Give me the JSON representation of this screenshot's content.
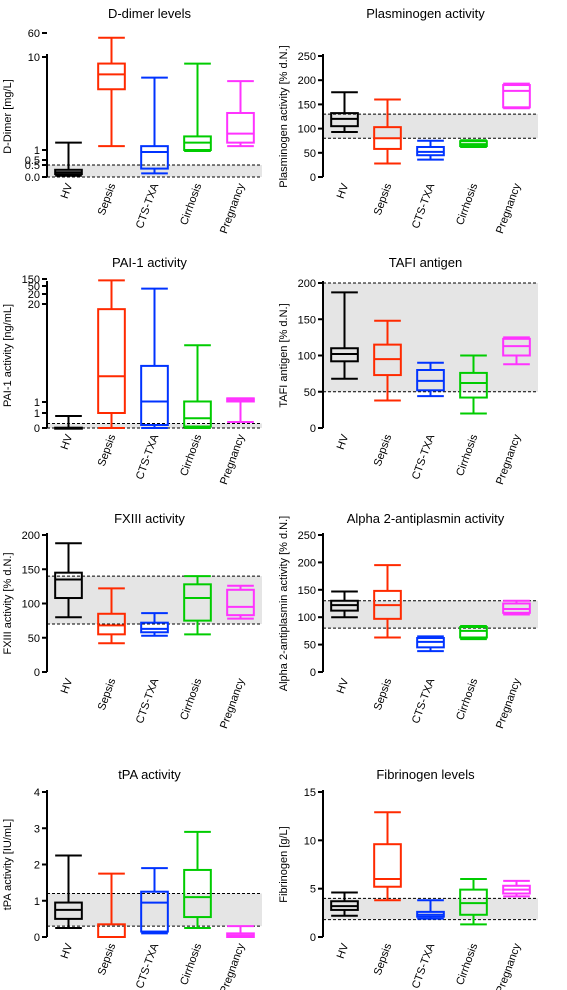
{
  "chart_data": [
    {
      "type": "boxplot",
      "title": "D-dimer levels",
      "ylabel": "D-Dimer [mg/L]",
      "categories": [
        "HV",
        "Sepsis",
        "CTS-TXA",
        "Cirrhosis",
        "Pregnancy"
      ],
      "colors": [
        "#000000",
        "#ff2a00",
        "#0033ff",
        "#00cc00",
        "#ff33ff"
      ],
      "axis_breaks": true,
      "tick_labels": [
        "0.0",
        "0.5",
        "0.5",
        "1",
        "10",
        "60"
      ],
      "reference_range": [
        0,
        0.5
      ],
      "series": [
        {
          "name": "HV",
          "min": 0.05,
          "q1": 0.12,
          "median": 0.2,
          "q3": 0.3,
          "max": 1.2
        },
        {
          "name": "Sepsis",
          "min": 1.1,
          "q1": 4.5,
          "median": 6.5,
          "q3": 8.5,
          "max": 50
        },
        {
          "name": "CTS-TXA",
          "min": 0.15,
          "q1": 0.35,
          "median": 0.9,
          "q3": 1.1,
          "max": 6.0
        },
        {
          "name": "Cirrhosis",
          "min": 0.95,
          "q1": 1.0,
          "median": 1.2,
          "q3": 1.4,
          "max": 8.5
        },
        {
          "name": "Pregnancy",
          "min": 1.1,
          "q1": 1.2,
          "median": 1.5,
          "q3": 2.5,
          "max": 5.5
        }
      ]
    },
    {
      "type": "boxplot",
      "title": "Plasminogen activity",
      "ylabel": "Plasminogen activity [% d.N.]",
      "categories": [
        "HV",
        "Sepsis",
        "CTS-TXA",
        "Cirrhosis",
        "Pregnancy"
      ],
      "colors": [
        "#000000",
        "#ff2a00",
        "#0033ff",
        "#00cc00",
        "#ff33ff"
      ],
      "ylim": [
        0,
        250
      ],
      "yticks": [
        0,
        50,
        100,
        150,
        200,
        250
      ],
      "reference_range": [
        80,
        130
      ],
      "series": [
        {
          "name": "HV",
          "min": 93,
          "q1": 105,
          "median": 120,
          "q3": 132,
          "max": 175
        },
        {
          "name": "Sepsis",
          "min": 28,
          "q1": 58,
          "median": 80,
          "q3": 103,
          "max": 160
        },
        {
          "name": "CTS-TXA",
          "min": 36,
          "q1": 45,
          "median": 52,
          "q3": 62,
          "max": 75
        },
        {
          "name": "Cirrhosis",
          "min": 62,
          "q1": 64,
          "median": 68,
          "q3": 74,
          "max": 76
        },
        {
          "name": "Pregnancy",
          "min": 142,
          "q1": 144,
          "median": 178,
          "q3": 190,
          "max": 193
        }
      ]
    },
    {
      "type": "boxplot",
      "title": "PAI-1 activity",
      "ylabel": "PAI-1 activity [ng/mL]",
      "categories": [
        "HV",
        "Sepsis",
        "CTS-TXA",
        "Cirrhosis",
        "Pregnancy"
      ],
      "colors": [
        "#000000",
        "#ff2a00",
        "#0033ff",
        "#00cc00",
        "#ff33ff"
      ],
      "axis_breaks": true,
      "tick_labels": [
        "0",
        "1",
        "1",
        "20",
        "20",
        "50",
        "150"
      ],
      "reference_range": [
        0,
        0.3
      ],
      "series": [
        {
          "name": "HV",
          "min": 0,
          "q1": 0,
          "median": 0,
          "q3": 0.02,
          "max": 0.8
        },
        {
          "name": "Sepsis",
          "min": 0,
          "q1": 1.0,
          "median": 6,
          "q3": 19,
          "max": 130
        },
        {
          "name": "CTS-TXA",
          "min": 0,
          "q1": 0.2,
          "median": 1.1,
          "q3": 8,
          "max": 40
        },
        {
          "name": "Cirrhosis",
          "min": 0,
          "q1": 0.1,
          "median": 0.65,
          "q3": 1.1,
          "max": 12
        },
        {
          "name": "Pregnancy",
          "min": 0.4,
          "q1": 1.1,
          "median": 1.3,
          "q3": 1.7,
          "max": 1.7
        }
      ]
    },
    {
      "type": "boxplot",
      "title": "TAFI antigen",
      "ylabel": "TAFI antigen [% d.N.]",
      "categories": [
        "HV",
        "Sepsis",
        "CTS-TXA",
        "Cirrhosis",
        "Pregnancy"
      ],
      "colors": [
        "#000000",
        "#ff2a00",
        "#0033ff",
        "#00cc00",
        "#ff33ff"
      ],
      "ylim": [
        0,
        200
      ],
      "yticks": [
        0,
        50,
        100,
        150,
        200
      ],
      "reference_range": [
        50,
        200
      ],
      "series": [
        {
          "name": "HV",
          "min": 68,
          "q1": 92,
          "median": 102,
          "q3": 110,
          "max": 187
        },
        {
          "name": "Sepsis",
          "min": 38,
          "q1": 73,
          "median": 95,
          "q3": 115,
          "max": 148
        },
        {
          "name": "CTS-TXA",
          "min": 44,
          "q1": 52,
          "median": 65,
          "q3": 80,
          "max": 90
        },
        {
          "name": "Cirrhosis",
          "min": 20,
          "q1": 42,
          "median": 62,
          "q3": 76,
          "max": 100
        },
        {
          "name": "Pregnancy",
          "min": 88,
          "q1": 100,
          "median": 113,
          "q3": 123,
          "max": 125
        }
      ]
    },
    {
      "type": "boxplot",
      "title": "FXIII activity",
      "ylabel": "FXIII activity [% d.N.]",
      "categories": [
        "HV",
        "Sepsis",
        "CTS-TXA",
        "Cirrhosis",
        "Pregnancy"
      ],
      "colors": [
        "#000000",
        "#ff2a00",
        "#0033ff",
        "#00cc00",
        "#ff33ff"
      ],
      "ylim": [
        0,
        200
      ],
      "yticks": [
        0,
        50,
        100,
        150,
        200
      ],
      "reference_range": [
        70,
        140
      ],
      "series": [
        {
          "name": "HV",
          "min": 80,
          "q1": 108,
          "median": 135,
          "q3": 145,
          "max": 188
        },
        {
          "name": "Sepsis",
          "min": 42,
          "q1": 55,
          "median": 68,
          "q3": 85,
          "max": 122
        },
        {
          "name": "CTS-TXA",
          "min": 53,
          "q1": 58,
          "median": 63,
          "q3": 72,
          "max": 86
        },
        {
          "name": "Cirrhosis",
          "min": 55,
          "q1": 75,
          "median": 108,
          "q3": 128,
          "max": 140
        },
        {
          "name": "Pregnancy",
          "min": 78,
          "q1": 83,
          "median": 95,
          "q3": 120,
          "max": 126
        }
      ]
    },
    {
      "type": "boxplot",
      "title": "Alpha 2-antiplasmin activity",
      "ylabel": "Alpha 2-antiplasmin activity [% d.N.]",
      "categories": [
        "HV",
        "Sepsis",
        "CTS-TXA",
        "Cirrhosis",
        "Pregnancy"
      ],
      "colors": [
        "#000000",
        "#ff2a00",
        "#0033ff",
        "#00cc00",
        "#ff33ff"
      ],
      "ylim": [
        0,
        250
      ],
      "yticks": [
        0,
        50,
        100,
        150,
        200,
        250
      ],
      "reference_range": [
        80,
        130
      ],
      "series": [
        {
          "name": "HV",
          "min": 100,
          "q1": 112,
          "median": 122,
          "q3": 130,
          "max": 147
        },
        {
          "name": "Sepsis",
          "min": 63,
          "q1": 97,
          "median": 122,
          "q3": 148,
          "max": 195
        },
        {
          "name": "CTS-TXA",
          "min": 38,
          "q1": 45,
          "median": 55,
          "q3": 62,
          "max": 65
        },
        {
          "name": "Cirrhosis",
          "min": 60,
          "q1": 63,
          "median": 75,
          "q3": 82,
          "max": 84
        },
        {
          "name": "Pregnancy",
          "min": 105,
          "q1": 108,
          "median": 115,
          "q3": 125,
          "max": 130
        }
      ]
    },
    {
      "type": "boxplot",
      "title": "tPA activity",
      "ylabel": "tPA activity [IU/mL]",
      "categories": [
        "HV",
        "Sepsis",
        "CTS-TXA",
        "Cirrhosis",
        "Pregnancy"
      ],
      "colors": [
        "#000000",
        "#ff2a00",
        "#0033ff",
        "#00cc00",
        "#ff33ff"
      ],
      "ylim": [
        0,
        4
      ],
      "yticks": [
        0,
        1,
        2,
        3,
        4
      ],
      "reference_range": [
        0.3,
        1.2
      ],
      "series": [
        {
          "name": "HV",
          "min": 0.25,
          "q1": 0.5,
          "median": 0.75,
          "q3": 0.95,
          "max": 2.25
        },
        {
          "name": "Sepsis",
          "min": 0,
          "q1": 0,
          "median": 0,
          "q3": 0.35,
          "max": 1.75
        },
        {
          "name": "CTS-TXA",
          "min": 0.1,
          "q1": 0.15,
          "median": 0.95,
          "q3": 1.25,
          "max": 1.9
        },
        {
          "name": "Cirrhosis",
          "min": 0.25,
          "q1": 0.55,
          "median": 1.1,
          "q3": 1.85,
          "max": 2.9
        },
        {
          "name": "Pregnancy",
          "min": 0,
          "q1": 0,
          "median": 0.05,
          "q3": 0.1,
          "max": 0.3
        }
      ]
    },
    {
      "type": "boxplot",
      "title": "Fibrinogen levels",
      "ylabel": "Fibrinogen [g/L]",
      "categories": [
        "HV",
        "Sepsis",
        "CTS-TXA",
        "Cirrhosis",
        "Pregnancy"
      ],
      "colors": [
        "#000000",
        "#ff2a00",
        "#0033ff",
        "#00cc00",
        "#ff33ff"
      ],
      "ylim": [
        0,
        15
      ],
      "yticks": [
        0,
        5,
        10,
        15
      ],
      "reference_range": [
        1.8,
        4.0
      ],
      "series": [
        {
          "name": "HV",
          "min": 2.2,
          "q1": 2.8,
          "median": 3.2,
          "q3": 3.7,
          "max": 4.6
        },
        {
          "name": "Sepsis",
          "min": 3.8,
          "q1": 5.2,
          "median": 6.0,
          "q3": 9.6,
          "max": 12.9
        },
        {
          "name": "CTS-TXA",
          "min": 1.9,
          "q1": 2.1,
          "median": 2.3,
          "q3": 2.6,
          "max": 3.8
        },
        {
          "name": "Cirrhosis",
          "min": 1.3,
          "q1": 2.3,
          "median": 3.5,
          "q3": 4.9,
          "max": 6.0
        },
        {
          "name": "Pregnancy",
          "min": 4.2,
          "q1": 4.5,
          "median": 4.9,
          "q3": 5.3,
          "max": 5.8
        }
      ]
    }
  ]
}
